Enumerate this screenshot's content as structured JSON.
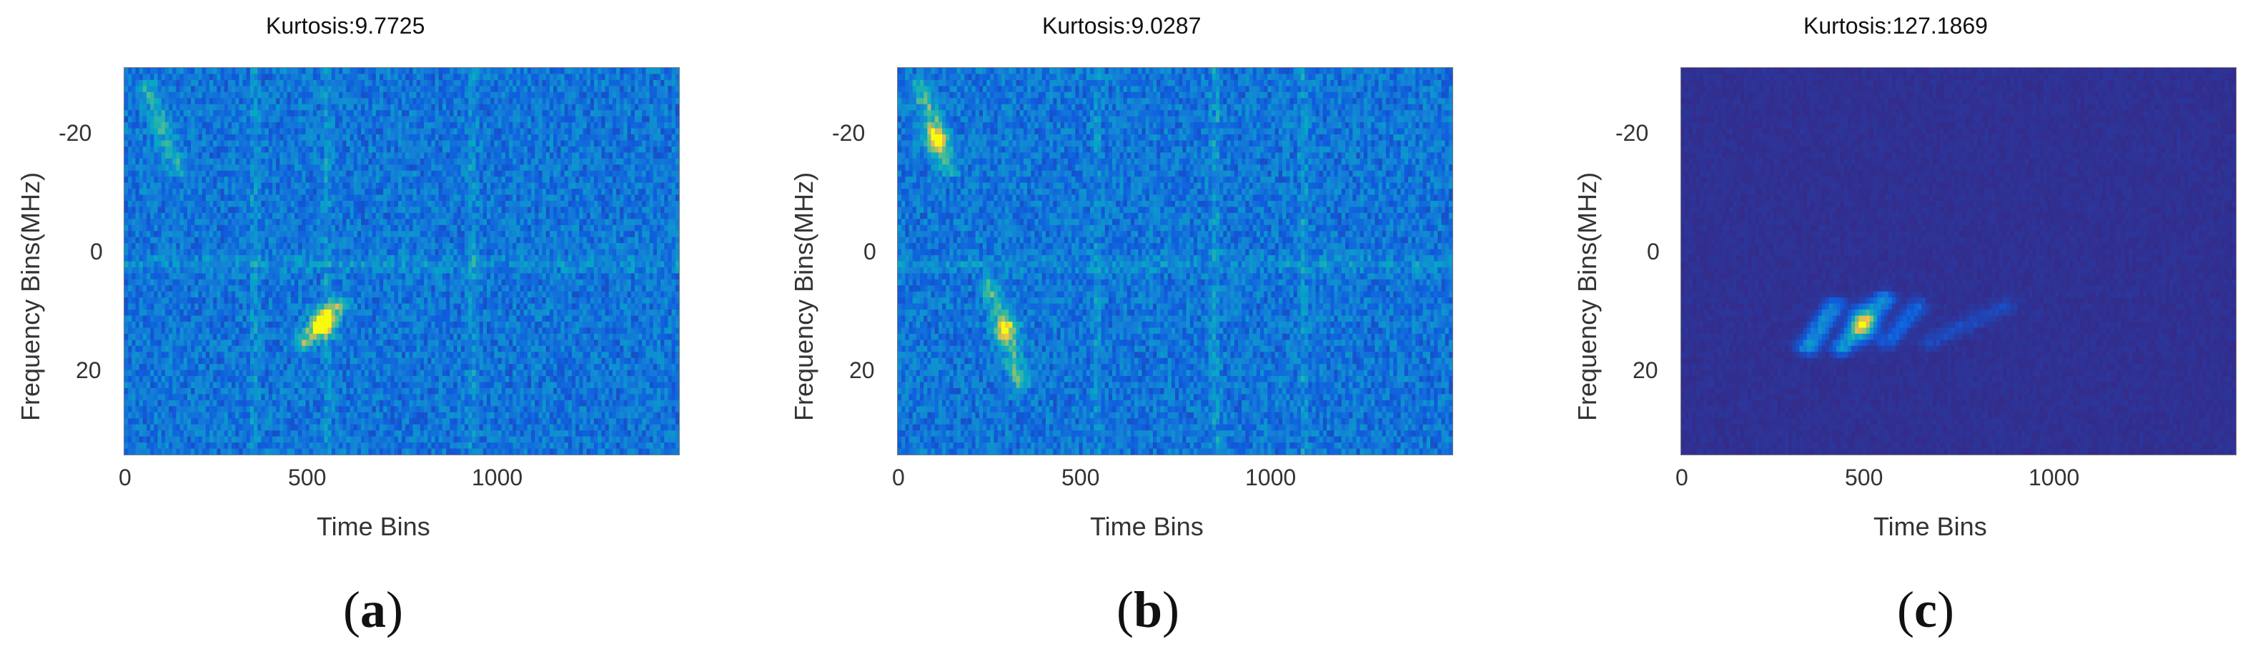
{
  "chart_data": [
    {
      "type": "heatmap",
      "title": "Kurtosis:9.7725",
      "xlabel": "Time Bins",
      "ylabel": "Frequency Bins(MHz)",
      "xlim": [
        0,
        1450
      ],
      "ylim": [
        -31,
        34
      ],
      "xticks": [
        0,
        500,
        1000
      ],
      "yticks": [
        -20,
        0,
        20
      ],
      "y_reversed": true,
      "colormap": "parula",
      "background_level": 0.25,
      "noise_level": 0.14,
      "features": [
        {
          "kind": "blob",
          "x": 520,
          "y": 12,
          "intensity": 0.75
        },
        {
          "kind": "streak",
          "x0": 470,
          "y0": 15,
          "x1": 560,
          "y1": 9,
          "intensity": 0.45
        },
        {
          "kind": "streak",
          "x0": 60,
          "y0": -28,
          "x1": 140,
          "y1": -14,
          "intensity": 0.25
        },
        {
          "kind": "column",
          "x": 340,
          "intensity": 0.12
        },
        {
          "kind": "column",
          "x": 530,
          "intensity": 0.12
        },
        {
          "kind": "column",
          "x": 910,
          "intensity": 0.12
        },
        {
          "kind": "row",
          "y": 2,
          "intensity": 0.1
        }
      ],
      "panel_label": "(a)",
      "panel_letter": "a"
    },
    {
      "type": "heatmap",
      "title": "Kurtosis:9.0287",
      "xlabel": "Time Bins",
      "ylabel": "Frequency Bins(MHz)",
      "xlim": [
        0,
        1450
      ],
      "ylim": [
        -31,
        34
      ],
      "xticks": [
        0,
        500,
        1000
      ],
      "yticks": [
        -20,
        0,
        20
      ],
      "y_reversed": true,
      "colormap": "parula",
      "background_level": 0.25,
      "noise_level": 0.14,
      "features": [
        {
          "kind": "blob",
          "x": 100,
          "y": -19,
          "intensity": 0.55
        },
        {
          "kind": "blob",
          "x": 285,
          "y": 13,
          "intensity": 0.5
        },
        {
          "kind": "streak",
          "x0": 60,
          "y0": -28,
          "x1": 130,
          "y1": -14,
          "intensity": 0.35
        },
        {
          "kind": "streak",
          "x0": 240,
          "y0": 5,
          "x1": 320,
          "y1": 22,
          "intensity": 0.3
        },
        {
          "kind": "column",
          "x": 830,
          "intensity": 0.14
        },
        {
          "kind": "column",
          "x": 1060,
          "intensity": 0.12
        },
        {
          "kind": "column",
          "x": 520,
          "intensity": 0.1
        },
        {
          "kind": "row",
          "y": 2,
          "intensity": 0.1
        }
      ],
      "panel_label": "(b)",
      "panel_letter": "b"
    },
    {
      "type": "heatmap",
      "title": "Kurtosis:127.1869",
      "xlabel": "Time Bins",
      "ylabel": "Frequency Bins(MHz)",
      "xlim": [
        0,
        1450
      ],
      "ylim": [
        -31,
        34
      ],
      "xticks": [
        0,
        500,
        1000
      ],
      "yticks": [
        -20,
        0,
        20
      ],
      "y_reversed": true,
      "colormap": "parula",
      "background_level": 0.02,
      "noise_level": 0.015,
      "features": [
        {
          "kind": "blob",
          "x": 475,
          "y": 12,
          "intensity": 0.75
        },
        {
          "kind": "streak",
          "x0": 330,
          "y0": 16,
          "x1": 400,
          "y1": 9,
          "intensity": 0.3
        },
        {
          "kind": "streak",
          "x0": 420,
          "y0": 16,
          "x1": 530,
          "y1": 8,
          "intensity": 0.35
        },
        {
          "kind": "streak",
          "x0": 540,
          "y0": 15,
          "x1": 620,
          "y1": 9,
          "intensity": 0.15
        },
        {
          "kind": "streak",
          "x0": 650,
          "y0": 15,
          "x1": 850,
          "y1": 9,
          "intensity": 0.08
        }
      ],
      "panel_label": "(c)",
      "panel_letter": "c"
    }
  ]
}
